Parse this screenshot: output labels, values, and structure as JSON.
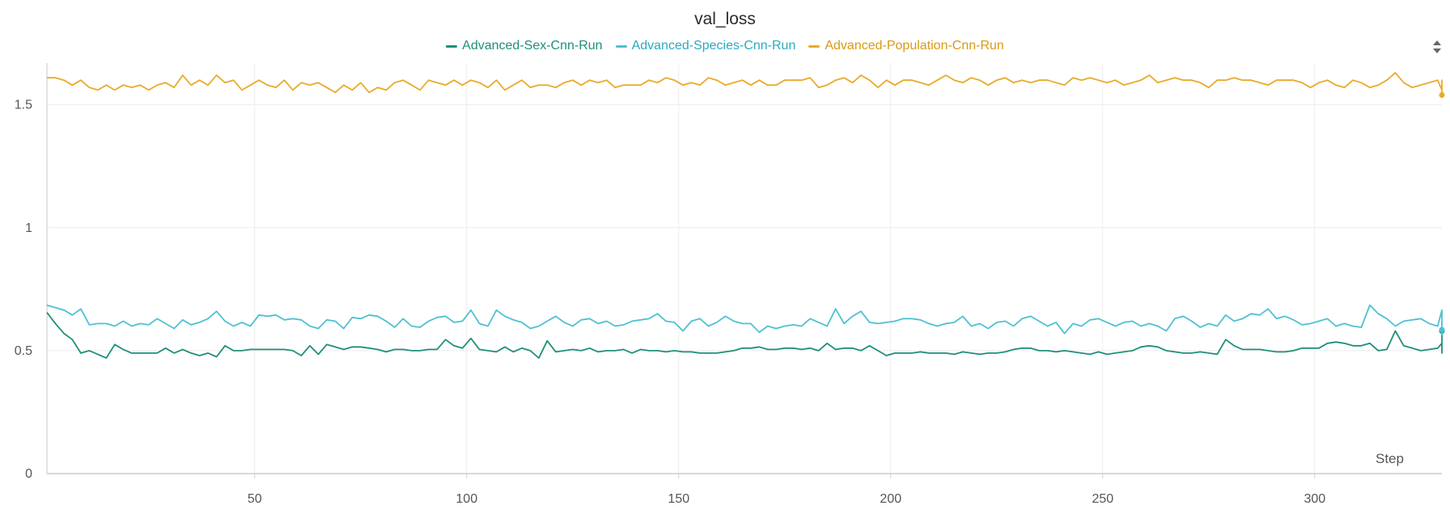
{
  "chart_data": {
    "type": "line",
    "title": "val_loss",
    "xlabel": "Step",
    "ylabel": "",
    "xlim": [
      1,
      330
    ],
    "ylim": [
      0,
      1.65
    ],
    "x_ticks": [
      50,
      100,
      150,
      200,
      250,
      300
    ],
    "y_ticks": [
      0,
      0.5,
      1,
      1.5
    ],
    "y_tick_labels": [
      "0",
      "0.5",
      "1",
      "1.5"
    ],
    "grid": true,
    "legend_position": "top-center",
    "x_start": 1,
    "x_step": 2,
    "series": [
      {
        "name": "Advanced-Sex-Cnn-Run",
        "color": "#1f8f7a",
        "values": [
          0.655,
          0.61,
          0.57,
          0.545,
          0.49,
          0.5,
          0.485,
          0.47,
          0.525,
          0.505,
          0.49,
          0.49,
          0.49,
          0.49,
          0.51,
          0.49,
          0.505,
          0.49,
          0.48,
          0.49,
          0.475,
          0.52,
          0.5,
          0.5,
          0.505,
          0.505,
          0.505,
          0.505,
          0.505,
          0.5,
          0.48,
          0.52,
          0.485,
          0.525,
          0.515,
          0.505,
          0.515,
          0.515,
          0.51,
          0.505,
          0.495,
          0.505,
          0.505,
          0.5,
          0.5,
          0.505,
          0.505,
          0.545,
          0.52,
          0.51,
          0.55,
          0.505,
          0.5,
          0.495,
          0.515,
          0.495,
          0.51,
          0.5,
          0.47,
          0.54,
          0.495,
          0.5,
          0.505,
          0.5,
          0.51,
          0.495,
          0.5,
          0.5,
          0.505,
          0.49,
          0.505,
          0.5,
          0.5,
          0.495,
          0.5,
          0.495,
          0.495,
          0.49,
          0.49,
          0.49,
          0.495,
          0.5,
          0.51,
          0.51,
          0.515,
          0.505,
          0.505,
          0.51,
          0.51,
          0.505,
          0.51,
          0.5,
          0.53,
          0.505,
          0.51,
          0.51,
          0.5,
          0.52,
          0.5,
          0.48,
          0.49,
          0.49,
          0.49,
          0.495,
          0.49,
          0.49,
          0.49,
          0.485,
          0.495,
          0.49,
          0.485,
          0.49,
          0.49,
          0.495,
          0.505,
          0.51,
          0.51,
          0.5,
          0.5,
          0.495,
          0.5,
          0.495,
          0.49,
          0.485,
          0.495,
          0.485,
          0.49,
          0.495,
          0.5,
          0.515,
          0.52,
          0.515,
          0.5,
          0.495,
          0.49,
          0.49,
          0.495,
          0.49,
          0.485,
          0.545,
          0.52,
          0.505,
          0.505,
          0.505,
          0.5,
          0.495,
          0.495,
          0.5,
          0.51,
          0.51,
          0.51,
          0.53,
          0.535,
          0.53,
          0.52,
          0.52,
          0.53,
          0.5,
          0.505,
          0.58,
          0.52,
          0.51,
          0.5,
          0.505,
          0.51,
          0.53,
          0.545,
          0.555,
          0.555,
          0.545,
          0.52,
          0.505,
          0.51,
          0.52,
          0.515,
          0.51,
          0.5,
          0.51,
          0.52,
          0.5,
          0.495,
          0.51,
          0.53,
          0.52,
          0.5,
          0.49,
          0.495,
          0.52,
          0.525,
          0.535,
          0.545,
          0.51,
          0.515,
          0.51,
          0.52,
          0.5,
          0.51,
          0.52,
          0.51,
          0.52,
          0.53,
          0.545,
          0.53,
          0.525,
          0.53,
          0.515,
          0.51,
          0.52,
          0.535,
          0.545,
          0.58
        ]
      },
      {
        "name": "Advanced-Species-Cnn-Run",
        "color": "#4ec1d3",
        "values": [
          0.685,
          0.675,
          0.665,
          0.645,
          0.67,
          0.605,
          0.61,
          0.61,
          0.6,
          0.62,
          0.6,
          0.61,
          0.605,
          0.63,
          0.61,
          0.59,
          0.625,
          0.605,
          0.615,
          0.63,
          0.66,
          0.62,
          0.6,
          0.615,
          0.6,
          0.645,
          0.64,
          0.645,
          0.625,
          0.63,
          0.625,
          0.6,
          0.59,
          0.625,
          0.62,
          0.59,
          0.635,
          0.63,
          0.645,
          0.64,
          0.62,
          0.595,
          0.63,
          0.6,
          0.595,
          0.62,
          0.635,
          0.64,
          0.615,
          0.62,
          0.665,
          0.61,
          0.6,
          0.665,
          0.64,
          0.625,
          0.615,
          0.59,
          0.6,
          0.62,
          0.64,
          0.615,
          0.6,
          0.625,
          0.63,
          0.61,
          0.62,
          0.6,
          0.605,
          0.62,
          0.625,
          0.63,
          0.65,
          0.62,
          0.615,
          0.58,
          0.62,
          0.63,
          0.6,
          0.615,
          0.64,
          0.62,
          0.61,
          0.61,
          0.575,
          0.6,
          0.59,
          0.6,
          0.605,
          0.6,
          0.63,
          0.615,
          0.6,
          0.67,
          0.61,
          0.64,
          0.66,
          0.615,
          0.61,
          0.615,
          0.62,
          0.63,
          0.63,
          0.625,
          0.61,
          0.6,
          0.61,
          0.615,
          0.64,
          0.6,
          0.61,
          0.59,
          0.615,
          0.62,
          0.6,
          0.63,
          0.64,
          0.62,
          0.6,
          0.615,
          0.57,
          0.61,
          0.6,
          0.625,
          0.63,
          0.615,
          0.6,
          0.615,
          0.62,
          0.6,
          0.61,
          0.6,
          0.58,
          0.63,
          0.64,
          0.62,
          0.595,
          0.61,
          0.6,
          0.645,
          0.62,
          0.63,
          0.65,
          0.645,
          0.67,
          0.63,
          0.64,
          0.625,
          0.605,
          0.61,
          0.62,
          0.63,
          0.6,
          0.61,
          0.6,
          0.595,
          0.685,
          0.65,
          0.63,
          0.6,
          0.62,
          0.625,
          0.63,
          0.61,
          0.6,
          0.665,
          0.62,
          0.6,
          0.61,
          0.64,
          0.62,
          0.6,
          0.63,
          0.65,
          0.62,
          0.6,
          0.63,
          0.625,
          0.615,
          0.605,
          0.59,
          0.61,
          0.64,
          0.6,
          0.66,
          0.62,
          0.6,
          0.63,
          0.64,
          0.6,
          0.61,
          0.595,
          0.62,
          0.615,
          0.6,
          0.575,
          0.6,
          0.58,
          0.61,
          0.6,
          0.59,
          0.59,
          0.565,
          0.585,
          0.6,
          0.66,
          0.585
        ]
      },
      {
        "name": "Advanced-Population-Cnn-Run",
        "color": "#e8ab2b",
        "values": [
          1.61,
          1.61,
          1.6,
          1.58,
          1.6,
          1.57,
          1.56,
          1.58,
          1.56,
          1.58,
          1.57,
          1.58,
          1.56,
          1.58,
          1.59,
          1.57,
          1.62,
          1.58,
          1.6,
          1.58,
          1.62,
          1.59,
          1.6,
          1.56,
          1.58,
          1.6,
          1.58,
          1.57,
          1.6,
          1.56,
          1.59,
          1.58,
          1.59,
          1.57,
          1.55,
          1.58,
          1.56,
          1.59,
          1.55,
          1.57,
          1.56,
          1.59,
          1.6,
          1.58,
          1.56,
          1.6,
          1.59,
          1.58,
          1.6,
          1.58,
          1.6,
          1.59,
          1.57,
          1.6,
          1.56,
          1.58,
          1.6,
          1.57,
          1.58,
          1.58,
          1.57,
          1.59,
          1.6,
          1.58,
          1.6,
          1.59,
          1.6,
          1.57,
          1.58,
          1.58,
          1.58,
          1.6,
          1.59,
          1.61,
          1.6,
          1.58,
          1.59,
          1.58,
          1.61,
          1.6,
          1.58,
          1.59,
          1.6,
          1.58,
          1.6,
          1.58,
          1.58,
          1.6,
          1.6,
          1.6,
          1.61,
          1.57,
          1.58,
          1.6,
          1.61,
          1.59,
          1.62,
          1.6,
          1.57,
          1.6,
          1.58,
          1.6,
          1.6,
          1.59,
          1.58,
          1.6,
          1.62,
          1.6,
          1.59,
          1.61,
          1.6,
          1.58,
          1.6,
          1.61,
          1.59,
          1.6,
          1.59,
          1.6,
          1.6,
          1.59,
          1.58,
          1.61,
          1.6,
          1.61,
          1.6,
          1.59,
          1.6,
          1.58,
          1.59,
          1.6,
          1.62,
          1.59,
          1.6,
          1.61,
          1.6,
          1.6,
          1.59,
          1.57,
          1.6,
          1.6,
          1.61,
          1.6,
          1.6,
          1.59,
          1.58,
          1.6,
          1.6,
          1.6,
          1.59,
          1.57,
          1.59,
          1.6,
          1.58,
          1.57,
          1.6,
          1.59,
          1.57,
          1.58,
          1.6,
          1.63,
          1.59,
          1.57,
          1.58,
          1.59,
          1.6,
          1.56,
          1.57,
          1.6,
          1.58,
          1.58,
          1.6,
          1.56,
          1.58,
          1.58,
          1.6,
          1.57,
          1.56,
          1.58,
          1.57,
          1.58,
          1.58,
          1.57,
          1.56,
          1.58,
          1.57,
          1.58,
          1.58,
          1.57,
          1.55,
          1.58,
          1.56,
          1.57,
          1.56,
          1.56,
          1.55,
          1.56,
          1.55,
          1.58,
          1.57,
          1.55,
          1.56,
          1.55,
          1.53,
          1.56,
          1.55,
          1.6,
          1.545,
          1.54
        ]
      }
    ]
  },
  "ui": {
    "sort_icon": "sort-arrows-icon"
  }
}
